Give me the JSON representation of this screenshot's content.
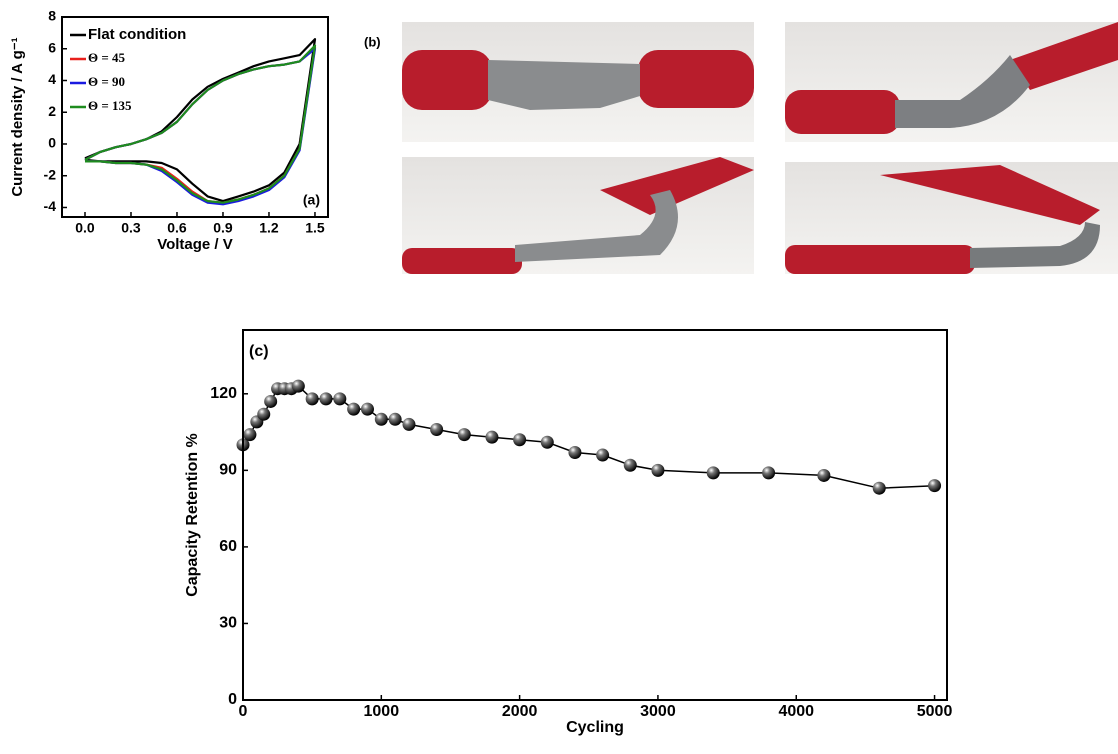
{
  "chart_data": [
    {
      "type": "line",
      "panel_label": "(a)",
      "x_label": "Voltage / V",
      "y_label": "Current density / A g⁻¹",
      "x": [
        0,
        0.1,
        0.2,
        0.3,
        0.4,
        0.5,
        0.6,
        0.7,
        0.8,
        0.9,
        1.0,
        1.1,
        1.2,
        1.3,
        1.4,
        1.5,
        1.4,
        1.3,
        1.2,
        1.1,
        1.0,
        0.9,
        0.8,
        0.7,
        0.6,
        0.5,
        0.4,
        0.3,
        0.2,
        0.1,
        0
      ],
      "series": [
        {
          "name": "Flat condition",
          "color": "#000000",
          "values": [
            -0.9,
            -0.5,
            -0.2,
            0.0,
            0.3,
            0.8,
            1.7,
            2.8,
            3.6,
            4.1,
            4.5,
            4.9,
            5.2,
            5.4,
            5.6,
            6.6,
            0.0,
            -1.8,
            -2.6,
            -3.0,
            -3.3,
            -3.6,
            -3.3,
            -2.5,
            -1.6,
            -1.2,
            -1.1,
            -1.1,
            -1.1,
            -1.1,
            -1.0
          ]
        },
        {
          "name": "Θ = 45",
          "color": "#e8201c",
          "values": [
            -1.0,
            -0.5,
            -0.2,
            0.0,
            0.3,
            0.7,
            1.4,
            2.5,
            3.4,
            4.0,
            4.4,
            4.7,
            4.9,
            5.0,
            5.2,
            6.1,
            -0.3,
            -2.0,
            -2.8,
            -3.2,
            -3.5,
            -3.7,
            -3.6,
            -3.0,
            -2.2,
            -1.5,
            -1.3,
            -1.2,
            -1.2,
            -1.1,
            -1.1
          ]
        },
        {
          "name": "Θ = 90",
          "color": "#1a1ae0",
          "values": [
            -1.0,
            -0.5,
            -0.2,
            0.0,
            0.3,
            0.7,
            1.4,
            2.5,
            3.4,
            4.0,
            4.4,
            4.7,
            4.9,
            5.0,
            5.2,
            6.0,
            -0.4,
            -2.1,
            -2.9,
            -3.3,
            -3.6,
            -3.8,
            -3.7,
            -3.2,
            -2.4,
            -1.7,
            -1.3,
            -1.2,
            -1.2,
            -1.1,
            -1.1
          ]
        },
        {
          "name": "Θ = 135",
          "color": "#1e8c1e",
          "values": [
            -1.0,
            -0.5,
            -0.2,
            0.0,
            0.3,
            0.7,
            1.4,
            2.5,
            3.4,
            4.0,
            4.4,
            4.7,
            4.9,
            5.0,
            5.2,
            6.2,
            -0.3,
            -2.0,
            -2.8,
            -3.2,
            -3.5,
            -3.7,
            -3.6,
            -3.1,
            -2.3,
            -1.6,
            -1.3,
            -1.2,
            -1.2,
            -1.1,
            -1.1
          ]
        }
      ],
      "xlim": [
        -0.15,
        1.585
      ],
      "ylim": [
        -4.6,
        8
      ],
      "xticks": [
        {
          "value": 0,
          "label": "0.0"
        },
        0.3,
        0.6,
        0.9,
        1.2,
        1.5
      ],
      "yticks": [
        -4,
        -2,
        0,
        2,
        4,
        6,
        8
      ],
      "legend": "upper left",
      "markers": false
    },
    {
      "type": "line",
      "panel_label": "(c)",
      "x_label": "Cycling",
      "y_label": "Capacity Retention %",
      "x": [
        0,
        50,
        100,
        150,
        200,
        250,
        300,
        350,
        400,
        500,
        600,
        700,
        800,
        900,
        1000,
        1100,
        1200,
        1400,
        1600,
        1800,
        2000,
        2200,
        2400,
        2600,
        2800,
        3000,
        3400,
        3800,
        4200,
        4600,
        5000
      ],
      "series": [
        {
          "color": "#000000",
          "values": [
            100,
            104,
            109,
            112,
            117,
            122,
            122,
            122,
            123,
            118,
            118,
            118,
            114,
            114,
            110,
            110,
            108,
            106,
            104,
            103,
            102,
            101,
            97,
            96,
            92,
            90,
            89,
            89,
            88,
            83,
            84
          ]
        }
      ],
      "xlim": [
        0,
        5090
      ],
      "ylim": [
        0,
        145
      ],
      "xticks": [
        0,
        1000,
        2000,
        3000,
        4000,
        5000
      ],
      "yticks": [
        0,
        30,
        60,
        90,
        120
      ],
      "markers": true
    }
  ],
  "photo_panel": {
    "label": "(b)"
  }
}
